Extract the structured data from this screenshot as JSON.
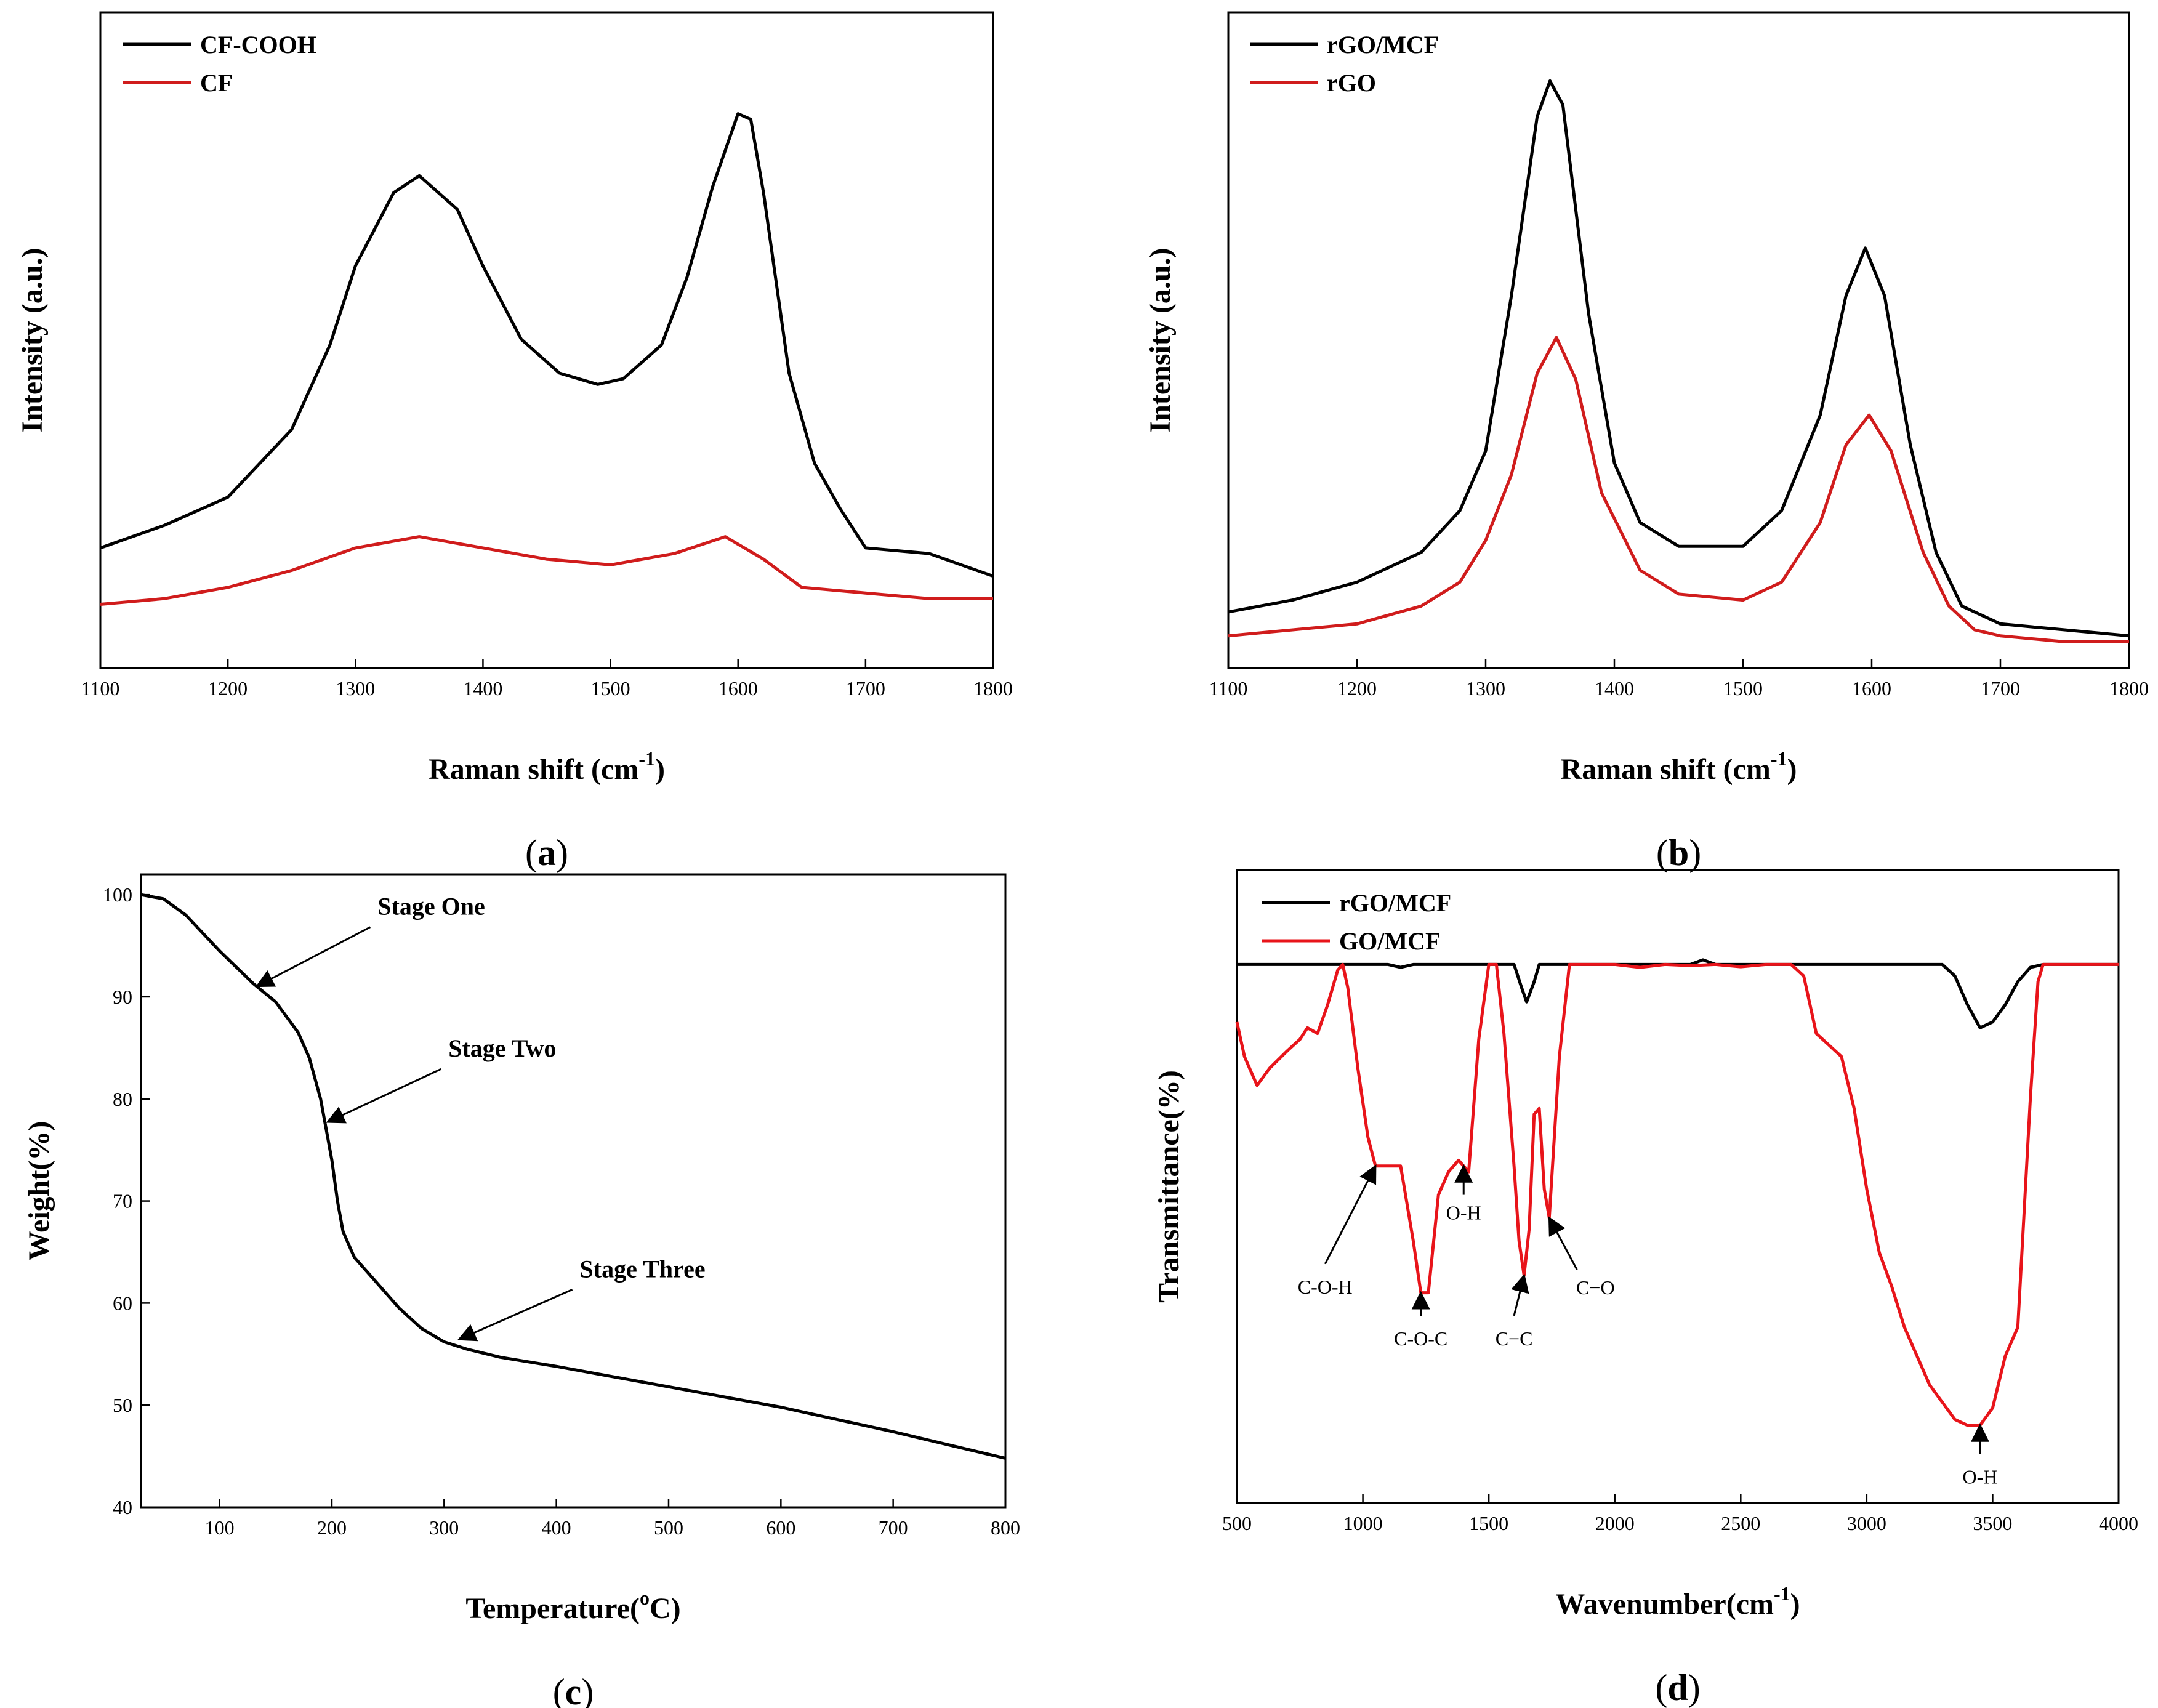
{
  "chart_data": [
    {
      "id": "a",
      "panel_label": "(a)",
      "panel_letter": "a",
      "type": "line",
      "title": "",
      "xlabel": "Raman shift (cm",
      "xlabel_sup": "-1",
      "xlabel_end": ")",
      "ylabel": "Intensity (a.u.)",
      "xlim": [
        1100,
        1800
      ],
      "ylim": [
        0,
        100
      ],
      "xticks": [
        1100,
        1200,
        1300,
        1400,
        1500,
        1600,
        1700,
        1800
      ],
      "yticks": [],
      "legend_position": "top-left",
      "series": [
        {
          "name": "CF-COOH",
          "color": "#000000",
          "x": [
            1100,
            1150,
            1200,
            1250,
            1280,
            1300,
            1330,
            1350,
            1380,
            1400,
            1430,
            1460,
            1490,
            1510,
            1540,
            1560,
            1580,
            1600,
            1610,
            1620,
            1640,
            1660,
            1680,
            1700,
            1750,
            1800
          ],
          "y": [
            12,
            16,
            21,
            33,
            48,
            62,
            75,
            78,
            72,
            62,
            49,
            43,
            41,
            42,
            48,
            60,
            76,
            89,
            88,
            75,
            43,
            27,
            19,
            12,
            11,
            7
          ]
        },
        {
          "name": "CF",
          "color": "#d01c1c",
          "x": [
            1100,
            1150,
            1200,
            1250,
            1300,
            1350,
            1400,
            1450,
            1500,
            1550,
            1590,
            1620,
            1650,
            1700,
            1750,
            1800
          ],
          "y": [
            2,
            3,
            5,
            8,
            12,
            14,
            12,
            10,
            9,
            11,
            14,
            10,
            5,
            4,
            3,
            3
          ]
        }
      ]
    },
    {
      "id": "b",
      "panel_label": "(b)",
      "panel_letter": "b",
      "type": "line",
      "title": "",
      "xlabel": "Raman shift (cm",
      "xlabel_sup": "-1",
      "xlabel_end": ")",
      "ylabel": "Intensity (a.u.)",
      "xlim": [
        1100,
        1800
      ],
      "ylim": [
        0,
        100
      ],
      "xticks": [
        1100,
        1200,
        1300,
        1400,
        1500,
        1600,
        1700,
        1800
      ],
      "yticks": [],
      "legend_position": "top-left",
      "series": [
        {
          "name": "rGO/MCF",
          "color": "#000000",
          "x": [
            1100,
            1150,
            1200,
            1250,
            1280,
            1300,
            1320,
            1340,
            1350,
            1360,
            1380,
            1400,
            1420,
            1450,
            1500,
            1530,
            1560,
            1580,
            1595,
            1610,
            1630,
            1650,
            1670,
            1700,
            1750,
            1800
          ],
          "y": [
            5,
            7,
            10,
            15,
            22,
            32,
            58,
            88,
            94,
            90,
            55,
            30,
            20,
            16,
            16,
            22,
            38,
            58,
            66,
            58,
            33,
            15,
            6,
            3,
            2,
            1
          ]
        },
        {
          "name": "rGO",
          "color": "#d01c1c",
          "x": [
            1100,
            1150,
            1200,
            1250,
            1280,
            1300,
            1320,
            1340,
            1355,
            1370,
            1390,
            1420,
            1450,
            1500,
            1530,
            1560,
            1580,
            1598,
            1615,
            1640,
            1660,
            1680,
            1700,
            1750,
            1800
          ],
          "y": [
            1,
            2,
            3,
            6,
            10,
            17,
            28,
            45,
            51,
            44,
            25,
            12,
            8,
            7,
            10,
            20,
            33,
            38,
            32,
            15,
            6,
            2,
            1,
            0,
            0
          ]
        }
      ]
    },
    {
      "id": "c",
      "panel_label": "(c)",
      "panel_letter": "c",
      "type": "line",
      "title": "",
      "xlabel": "Temperature(",
      "xlabel_sup": "o",
      "xlabel_end": "C)",
      "ylabel": "Weight(%)",
      "xlim": [
        30,
        800
      ],
      "ylim": [
        40,
        102
      ],
      "xticks": [
        100,
        200,
        300,
        400,
        500,
        600,
        700,
        800
      ],
      "yticks": [
        40,
        50,
        60,
        70,
        80,
        90,
        100
      ],
      "legend_position": "none",
      "series": [
        {
          "name": "Weight",
          "color": "#000000",
          "x": [
            30,
            50,
            70,
            100,
            130,
            150,
            170,
            180,
            190,
            195,
            200,
            205,
            210,
            220,
            240,
            260,
            280,
            300,
            320,
            350,
            400,
            450,
            500,
            550,
            600,
            650,
            700,
            750,
            800
          ],
          "y": [
            100,
            99.6,
            98,
            94.5,
            91.3,
            89.5,
            86.5,
            84,
            80,
            77,
            74,
            70,
            67,
            64.5,
            62,
            59.5,
            57.5,
            56.2,
            55.5,
            54.7,
            53.8,
            52.8,
            51.8,
            50.8,
            49.8,
            48.6,
            47.4,
            46.1,
            44.8
          ]
        }
      ],
      "annotations": [
        {
          "text": "Stage One",
          "x": 130,
          "y": 90.8
        },
        {
          "text": "Stage Two",
          "x": 193,
          "y": 77.5
        },
        {
          "text": "Stage Three",
          "x": 310,
          "y": 56.2
        }
      ]
    },
    {
      "id": "d",
      "panel_label": "(d)",
      "panel_letter": "d",
      "type": "line",
      "title": "",
      "xlabel": "Wavenumber(cm",
      "xlabel_sup": "-1",
      "xlabel_end": ")",
      "ylabel": "Transmittance(%)",
      "xlim": [
        500,
        4000
      ],
      "ylim": [
        0,
        100
      ],
      "xticks": [
        500,
        1000,
        1500,
        2000,
        2500,
        3000,
        3500,
        4000
      ],
      "yticks": [],
      "legend_position": "top-left",
      "series": [
        {
          "name": "rGO/MCF",
          "color": "#000000",
          "x": [
            500,
            1000,
            1100,
            1150,
            1200,
            1600,
            1630,
            1650,
            1680,
            1700,
            2300,
            2350,
            2400,
            3300,
            3350,
            3400,
            3450,
            3500,
            3550,
            3600,
            3650,
            3700,
            4000
          ],
          "y": [
            88,
            88,
            88,
            87.5,
            88,
            88,
            84,
            81.5,
            85,
            88,
            88,
            88.8,
            88,
            88,
            86,
            81,
            77,
            78,
            81,
            85,
            87.5,
            88,
            88
          ]
        },
        {
          "name": "GO/MCF",
          "color": "#e8141a",
          "x": [
            500,
            530,
            580,
            630,
            700,
            750,
            780,
            820,
            860,
            900,
            920,
            940,
            980,
            1020,
            1050,
            1100,
            1150,
            1200,
            1230,
            1260,
            1300,
            1340,
            1380,
            1420,
            1460,
            1500,
            1530,
            1560,
            1600,
            1620,
            1640,
            1660,
            1680,
            1700,
            1720,
            1740,
            1780,
            1820,
            1860,
            1900,
            2000,
            2100,
            2200,
            2300,
            2400,
            2500,
            2600,
            2700,
            2750,
            2800,
            2850,
            2900,
            2950,
            3000,
            3050,
            3100,
            3150,
            3200,
            3250,
            3300,
            3350,
            3400,
            3450,
            3500,
            3550,
            3600,
            3650,
            3680,
            3700,
            3750,
            4000
          ],
          "y": [
            78,
            72,
            67,
            70,
            73,
            75,
            77,
            76,
            81,
            87,
            88,
            84,
            70,
            58,
            53,
            53,
            53,
            40,
            31,
            31,
            48,
            52,
            54,
            52,
            75,
            88,
            88,
            76,
            53,
            40,
            34,
            42,
            62,
            63,
            49,
            44,
            72,
            88,
            88,
            88,
            88,
            87.5,
            88,
            87.8,
            88,
            87.6,
            88,
            88,
            86,
            76,
            74,
            72,
            63,
            49,
            38,
            32,
            25,
            20,
            15,
            12,
            9,
            8,
            8,
            11,
            20,
            25,
            65,
            85,
            88,
            88,
            88
          ]
        }
      ],
      "arrow_annotations": [
        {
          "text": "C-O-H",
          "tip": [
            1050,
            53
          ],
          "tail": [
            850,
            36
          ]
        },
        {
          "text": "C-O-C",
          "tip": [
            1230,
            31
          ],
          "tail": [
            1230,
            27
          ]
        },
        {
          "text": "O-H",
          "tip": [
            1400,
            53
          ],
          "tail": [
            1400,
            48
          ]
        },
        {
          "text": "C−C",
          "tip": [
            1640,
            34
          ],
          "tail": [
            1600,
            27
          ]
        },
        {
          "text": "C−O",
          "tip": [
            1740,
            44
          ],
          "tail": [
            1850,
            35
          ]
        },
        {
          "text": "O-H",
          "tip": [
            3450,
            8
          ],
          "tail": [
            3450,
            3
          ]
        }
      ]
    }
  ]
}
